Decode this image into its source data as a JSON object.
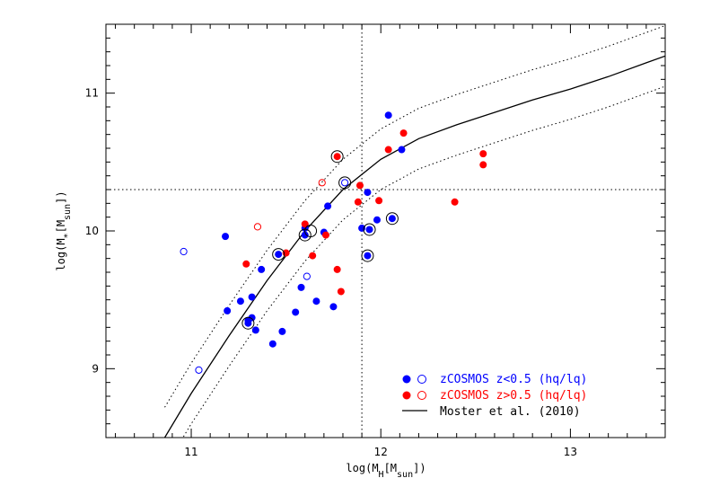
{
  "chart_data": {
    "type": "scatter",
    "xlabel": "log(M_H[M_sun])",
    "ylabel": "log(M_*[M_sun])",
    "xlim": [
      10.55,
      13.5
    ],
    "ylim": [
      8.5,
      11.5
    ],
    "x_ticks": [
      11,
      12,
      13
    ],
    "y_ticks": [
      9,
      10,
      11
    ],
    "x_tick_labels": [
      "11",
      "12",
      "13"
    ],
    "y_tick_labels": [
      "9",
      "10",
      "11"
    ],
    "reference_lines": {
      "vertical_x": 11.9,
      "horizontal_y": 10.3
    },
    "colors": {
      "blue": "#0000ff",
      "red": "#ff0000",
      "black": "#000000"
    },
    "series": [
      {
        "name": "zCOSMOS z<0.5 (hq)",
        "color": "blue",
        "marker": "filled",
        "points": [
          [
            11.18,
            9.96
          ],
          [
            11.19,
            9.42
          ],
          [
            11.26,
            9.49
          ],
          [
            11.3,
            9.35
          ],
          [
            11.32,
            9.37
          ],
          [
            11.32,
            9.52
          ],
          [
            11.34,
            9.28
          ],
          [
            11.37,
            9.72
          ],
          [
            11.43,
            9.18
          ],
          [
            11.46,
            9.83
          ],
          [
            11.48,
            9.27
          ],
          [
            11.55,
            9.41
          ],
          [
            11.58,
            9.59
          ],
          [
            11.6,
            9.97
          ],
          [
            11.6,
            10.02
          ],
          [
            11.66,
            9.49
          ],
          [
            11.7,
            9.99
          ],
          [
            11.72,
            10.18
          ],
          [
            11.75,
            9.45
          ],
          [
            11.9,
            10.02
          ],
          [
            11.93,
            10.28
          ],
          [
            11.98,
            10.08
          ],
          [
            12.04,
            10.84
          ],
          [
            12.11,
            10.59
          ],
          [
            11.93,
            9.82
          ],
          [
            11.94,
            10.01
          ],
          [
            12.06,
            10.09
          ],
          [
            11.3,
            9.33
          ]
        ]
      },
      {
        "name": "zCOSMOS z<0.5 (lq)",
        "color": "blue",
        "marker": "open",
        "points": [
          [
            10.96,
            9.85
          ],
          [
            11.04,
            8.99
          ],
          [
            11.61,
            9.67
          ],
          [
            11.81,
            10.35
          ]
        ]
      },
      {
        "name": "zCOSMOS z>0.5 (hq)",
        "color": "red",
        "marker": "filled",
        "points": [
          [
            11.29,
            9.76
          ],
          [
            11.5,
            9.84
          ],
          [
            11.6,
            10.05
          ],
          [
            11.64,
            9.82
          ],
          [
            11.71,
            9.97
          ],
          [
            11.77,
            9.72
          ],
          [
            11.79,
            9.56
          ],
          [
            11.77,
            10.54
          ],
          [
            11.88,
            10.21
          ],
          [
            11.89,
            10.33
          ],
          [
            11.99,
            10.22
          ],
          [
            12.04,
            10.59
          ],
          [
            12.12,
            10.71
          ],
          [
            12.39,
            10.21
          ],
          [
            12.54,
            10.56
          ],
          [
            12.54,
            10.48
          ]
        ]
      },
      {
        "name": "zCOSMOS z>0.5 (lq)",
        "color": "red",
        "marker": "open",
        "points": [
          [
            11.35,
            10.03
          ],
          [
            11.69,
            10.35
          ]
        ]
      }
    ],
    "circled_points": [
      [
        11.3,
        9.33
      ],
      [
        11.46,
        9.83
      ],
      [
        11.6,
        9.97
      ],
      [
        11.63,
        10.0
      ],
      [
        11.77,
        10.54
      ],
      [
        11.81,
        10.35
      ],
      [
        11.93,
        9.82
      ],
      [
        11.94,
        10.01
      ],
      [
        12.06,
        10.09
      ]
    ],
    "model_curve": {
      "name": "Moster et al. (2010)",
      "points": [
        [
          10.86,
          8.5
        ],
        [
          11.0,
          8.82
        ],
        [
          11.2,
          9.24
        ],
        [
          11.4,
          9.64
        ],
        [
          11.6,
          10.0
        ],
        [
          11.8,
          10.3
        ],
        [
          12.0,
          10.52
        ],
        [
          12.2,
          10.67
        ],
        [
          12.4,
          10.77
        ],
        [
          12.6,
          10.86
        ],
        [
          12.8,
          10.95
        ],
        [
          13.0,
          11.03
        ],
        [
          13.2,
          11.12
        ],
        [
          13.4,
          11.22
        ],
        [
          13.5,
          11.27
        ]
      ],
      "scatter_offset": 0.22
    },
    "legend": {
      "placement": "bottom-right",
      "entries": [
        {
          "text": "zCOSMOS z<0.5 (hq/lq)",
          "color": "blue"
        },
        {
          "text": "zCOSMOS z>0.5 (hq/lq)",
          "color": "red"
        },
        {
          "text": "Moster et al. (2010)",
          "color": "black"
        }
      ]
    }
  }
}
